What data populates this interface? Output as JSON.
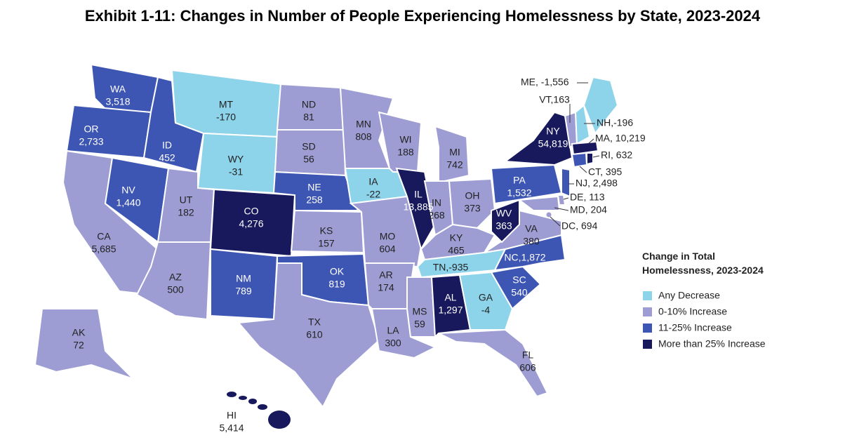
{
  "title": "Exhibit 1-11: Changes in Number of People Experiencing Homelessness by State, 2023-2024",
  "legend": {
    "title": [
      "Change in Total",
      "Homelessness, 2023-2024"
    ],
    "items": [
      {
        "label": "Any Decrease",
        "color": "#8dd3ea"
      },
      {
        "label": "0-10% Increase",
        "color": "#9d9dd4"
      },
      {
        "label": "11-25% Increase",
        "color": "#3e56b3"
      },
      {
        "label": "More than 25% Increase",
        "color": "#17195c"
      }
    ]
  },
  "states": [
    {
      "code": "WA",
      "value": "3,518",
      "color": "#3e56b3"
    },
    {
      "code": "OR",
      "value": "2,733",
      "color": "#3e56b3"
    },
    {
      "code": "CA",
      "value": "5,685",
      "color": "#9d9dd4"
    },
    {
      "code": "NV",
      "value": "1,440",
      "color": "#3e56b3"
    },
    {
      "code": "ID",
      "value": "452",
      "color": "#3e56b3"
    },
    {
      "code": "MT",
      "value": "-170",
      "color": "#8dd3ea"
    },
    {
      "code": "WY",
      "value": "-31",
      "color": "#8dd3ea"
    },
    {
      "code": "UT",
      "value": "182",
      "color": "#9d9dd4"
    },
    {
      "code": "AZ",
      "value": "500",
      "color": "#9d9dd4"
    },
    {
      "code": "CO",
      "value": "4,276",
      "color": "#17195c"
    },
    {
      "code": "NM",
      "value": "789",
      "color": "#3e56b3"
    },
    {
      "code": "ND",
      "value": "81",
      "color": "#9d9dd4"
    },
    {
      "code": "SD",
      "value": "56",
      "color": "#9d9dd4"
    },
    {
      "code": "NE",
      "value": "258",
      "color": "#3e56b3"
    },
    {
      "code": "KS",
      "value": "157",
      "color": "#9d9dd4"
    },
    {
      "code": "OK",
      "value": "819",
      "color": "#3e56b3"
    },
    {
      "code": "TX",
      "value": "610",
      "color": "#9d9dd4"
    },
    {
      "code": "MN",
      "value": "808",
      "color": "#9d9dd4"
    },
    {
      "code": "IA",
      "value": "-22",
      "color": "#8dd3ea"
    },
    {
      "code": "MO",
      "value": "604",
      "color": "#9d9dd4"
    },
    {
      "code": "AR",
      "value": "174",
      "color": "#9d9dd4"
    },
    {
      "code": "LA",
      "value": "300",
      "color": "#9d9dd4"
    },
    {
      "code": "WI",
      "value": "188",
      "color": "#9d9dd4"
    },
    {
      "code": "IL",
      "value": "13,885",
      "color": "#17195c"
    },
    {
      "code": "MI",
      "value": "742",
      "color": "#9d9dd4"
    },
    {
      "code": "IN",
      "value": "268",
      "color": "#9d9dd4"
    },
    {
      "code": "OH",
      "value": "373",
      "color": "#9d9dd4"
    },
    {
      "code": "KY",
      "value": "465",
      "color": "#9d9dd4"
    },
    {
      "label": "TN,-935",
      "color": "#8dd3ea"
    },
    {
      "code": "MS",
      "value": "59",
      "color": "#9d9dd4"
    },
    {
      "code": "AL",
      "value": "1,297",
      "color": "#17195c"
    },
    {
      "code": "GA",
      "value": "-4",
      "color": "#8dd3ea"
    },
    {
      "code": "FL",
      "value": "606",
      "color": "#9d9dd4"
    },
    {
      "code": "SC",
      "value": "540",
      "color": "#3e56b3"
    },
    {
      "label": "NC,1,872",
      "color": "#3e56b3"
    },
    {
      "code": "VA",
      "value": "380",
      "color": "#9d9dd4"
    },
    {
      "code": "WV",
      "value": "363",
      "color": "#17195c"
    },
    {
      "code": "PA",
      "value": "1,532",
      "color": "#3e56b3"
    },
    {
      "code": "NY",
      "value": "54,819",
      "color": "#17195c"
    },
    {
      "label": "VT,163",
      "color": "#9d9dd4"
    },
    {
      "label": "NH,-196",
      "color": "#8dd3ea"
    },
    {
      "label": "ME, -1,556",
      "color": "#8dd3ea"
    },
    {
      "label": "MA, 10,219",
      "color": "#17195c"
    },
    {
      "label": "CT, 395",
      "color": "#3e56b3"
    },
    {
      "label": "RI, 632",
      "color": "#17195c"
    },
    {
      "label": "NJ, 2,498",
      "color": "#3e56b3"
    },
    {
      "label": "DE, 113",
      "color": "#9d9dd4"
    },
    {
      "label": "MD, 204",
      "color": "#9d9dd4"
    },
    {
      "label": "DC, 694",
      "color": "#9d9dd4"
    },
    {
      "code": "AK",
      "value": "72",
      "color": "#9d9dd4"
    },
    {
      "code": "HI",
      "value": "5,414",
      "color": "#17195c"
    }
  ]
}
